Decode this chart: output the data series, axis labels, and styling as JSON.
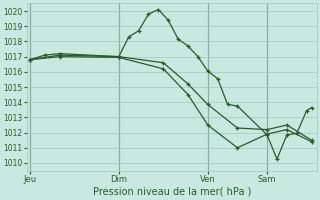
{
  "xlabel": "Pression niveau de la mer( hPa )",
  "ylim": [
    1009.5,
    1020.5
  ],
  "yticks": [
    1010,
    1011,
    1012,
    1013,
    1014,
    1015,
    1016,
    1017,
    1018,
    1019,
    1020
  ],
  "bg_color": "#c8e8e0",
  "grid_color": "#a0c8c0",
  "line_color": "#2d5a2d",
  "vline_color": "#4a7a5a",
  "xlabel_color": "#2d5a2d",
  "tick_color": "#2d5a2d",
  "day_labels": [
    "Jeu",
    "Dim",
    "Ven",
    "Sam"
  ],
  "day_positions": [
    0,
    9,
    18,
    24
  ],
  "xlim": [
    -0.3,
    29
  ],
  "series": [
    {
      "x": [
        0,
        1.5,
        3,
        9,
        10,
        11,
        12,
        13,
        14,
        15,
        16,
        17,
        18,
        19,
        20,
        21,
        24,
        25,
        26,
        27,
        28,
        28.5
      ],
      "y": [
        1016.8,
        1017.1,
        1017.2,
        1017.0,
        1018.3,
        1018.7,
        1019.8,
        1020.1,
        1019.4,
        1018.15,
        1017.7,
        1017.0,
        1016.05,
        1015.55,
        1013.85,
        1013.75,
        1011.85,
        1010.25,
        1011.85,
        1011.95,
        1013.45,
        1013.65
      ]
    },
    {
      "x": [
        0,
        3,
        9,
        13.5,
        16,
        18,
        21,
        24,
        26,
        28.5
      ],
      "y": [
        1016.8,
        1017.1,
        1017.0,
        1016.6,
        1015.2,
        1013.85,
        1012.3,
        1012.2,
        1012.5,
        1011.5
      ]
    },
    {
      "x": [
        0,
        3,
        9,
        13.5,
        16,
        18,
        21,
        24,
        26,
        28.5
      ],
      "y": [
        1016.8,
        1017.0,
        1016.95,
        1016.2,
        1014.5,
        1012.5,
        1011.0,
        1011.9,
        1012.2,
        1011.4
      ]
    }
  ]
}
